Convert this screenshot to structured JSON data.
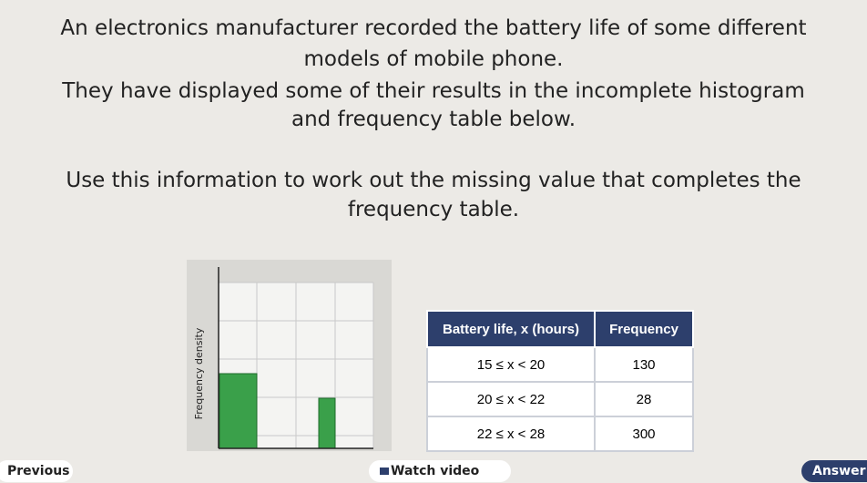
{
  "question": {
    "paragraphs": [
      [
        "An electronics manufacturer recorded the battery life of some different",
        "models of mobile phone."
      ],
      [
        "They have displayed some of their results in the incomplete histogram",
        "and frequency table below."
      ],
      [
        "Use this information to work out the missing value that completes the",
        "frequency table."
      ]
    ]
  },
  "histogram": {
    "y_label": "Frequency density"
  },
  "table": {
    "headers": [
      "Battery life, x (hours)",
      "Frequency"
    ],
    "rows": [
      [
        "15 ≤ x < 20",
        130
      ],
      [
        "20 ≤ x < 22",
        28
      ],
      [
        "22 ≤ x < 28",
        300
      ]
    ]
  },
  "footer": {
    "previous": "Previous",
    "watch": "Watch video",
    "answer": "Answer"
  }
}
